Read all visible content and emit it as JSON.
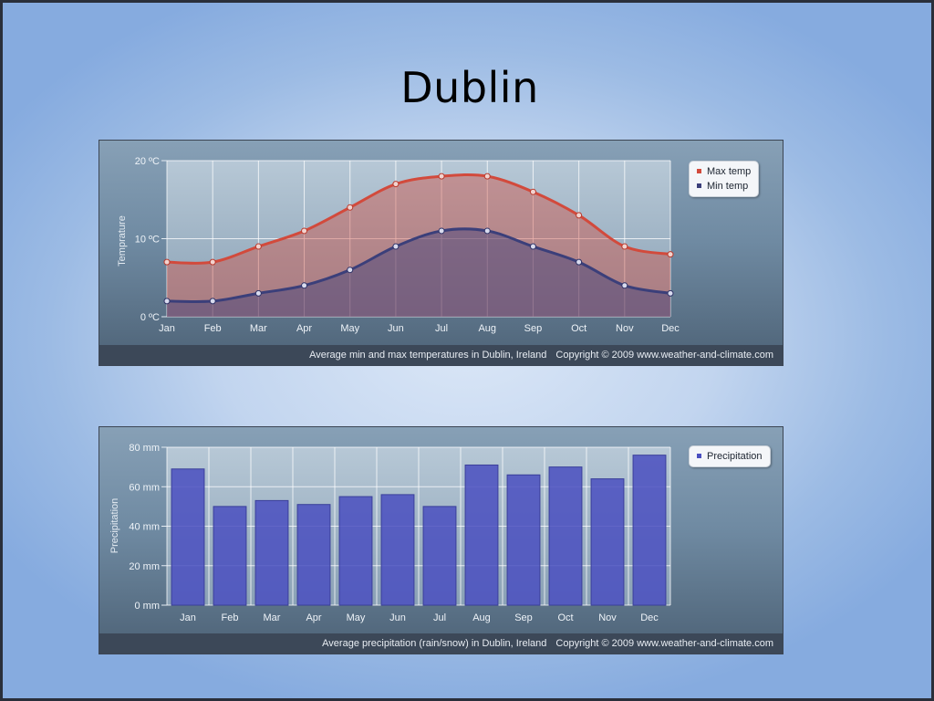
{
  "slide": {
    "title": "Dublin"
  },
  "colors": {
    "max_temp": "#d24a3c",
    "min_temp": "#3b3f7a",
    "precipitation": "#4a4fc0"
  },
  "chart_data": [
    {
      "type": "area",
      "title": "",
      "ylabel": "Temprature",
      "xlabel": "",
      "categories": [
        "Jan",
        "Feb",
        "Mar",
        "Apr",
        "May",
        "Jun",
        "Jul",
        "Aug",
        "Sep",
        "Oct",
        "Nov",
        "Dec"
      ],
      "ylim": [
        0,
        20
      ],
      "yticks": [
        0,
        10,
        20
      ],
      "ytick_labels": [
        "0 ºC",
        "10 ºC",
        "20 ºC"
      ],
      "grid": true,
      "legend_position": "top-right",
      "series": [
        {
          "name": "Max temp",
          "values": [
            7,
            7,
            9,
            11,
            14,
            17,
            18,
            18,
            16,
            13,
            9,
            8
          ]
        },
        {
          "name": "Min temp",
          "values": [
            2,
            2,
            3,
            4,
            6,
            9,
            11,
            11,
            9,
            7,
            4,
            3
          ]
        }
      ],
      "caption": "Average min and max temperatures in Dublin, Ireland",
      "copyright": "Copyright © 2009 www.weather-and-climate.com"
    },
    {
      "type": "bar",
      "title": "",
      "ylabel": "Precipitation",
      "xlabel": "",
      "categories": [
        "Jan",
        "Feb",
        "Mar",
        "Apr",
        "May",
        "Jun",
        "Jul",
        "Aug",
        "Sep",
        "Oct",
        "Nov",
        "Dec"
      ],
      "ylim": [
        0,
        80
      ],
      "yticks": [
        0,
        20,
        40,
        60,
        80
      ],
      "ytick_labels": [
        "0 mm",
        "20 mm",
        "40 mm",
        "60 mm",
        "80 mm"
      ],
      "grid": true,
      "legend_position": "top-right",
      "series": [
        {
          "name": "Precipitation",
          "values": [
            69,
            50,
            53,
            51,
            55,
            56,
            50,
            71,
            66,
            70,
            64,
            76
          ]
        }
      ],
      "caption": "Average precipitation (rain/snow) in Dublin, Ireland",
      "copyright": "Copyright © 2009 www.weather-and-climate.com"
    }
  ]
}
